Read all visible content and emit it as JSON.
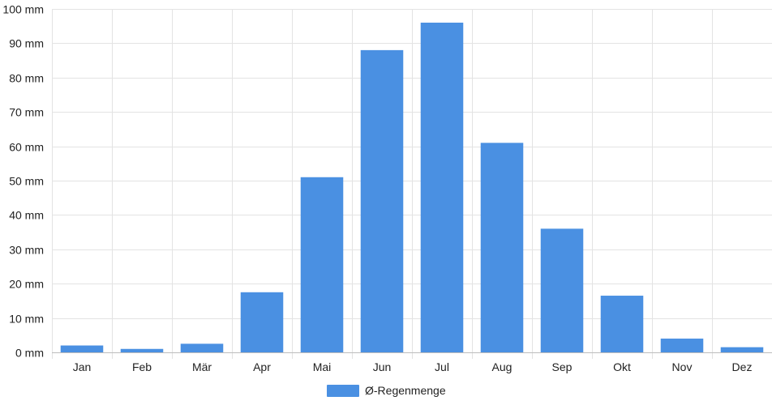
{
  "chart_data": {
    "type": "bar",
    "categories": [
      "Jan",
      "Feb",
      "Mär",
      "Apr",
      "Mai",
      "Jun",
      "Jul",
      "Aug",
      "Sep",
      "Okt",
      "Nov",
      "Dez"
    ],
    "series": [
      {
        "name": "Ø-Regenmenge",
        "color": "#4a90e2",
        "values": [
          2,
          1,
          2.5,
          17.5,
          51,
          88,
          96,
          61,
          36,
          16.5,
          4,
          1.5
        ]
      }
    ],
    "y_unit": "mm",
    "ylim": [
      0,
      100
    ],
    "y_ticks": [
      0,
      10,
      20,
      30,
      40,
      50,
      60,
      70,
      80,
      90,
      100
    ],
    "y_tick_labels": [
      "0 mm",
      "10 mm",
      "20 mm",
      "30 mm",
      "40 mm",
      "50 mm",
      "60 mm",
      "70 mm",
      "80 mm",
      "90 mm",
      "100 mm"
    ],
    "grid": true,
    "legend_position": "bottom",
    "title": "",
    "xlabel": "",
    "ylabel": ""
  }
}
